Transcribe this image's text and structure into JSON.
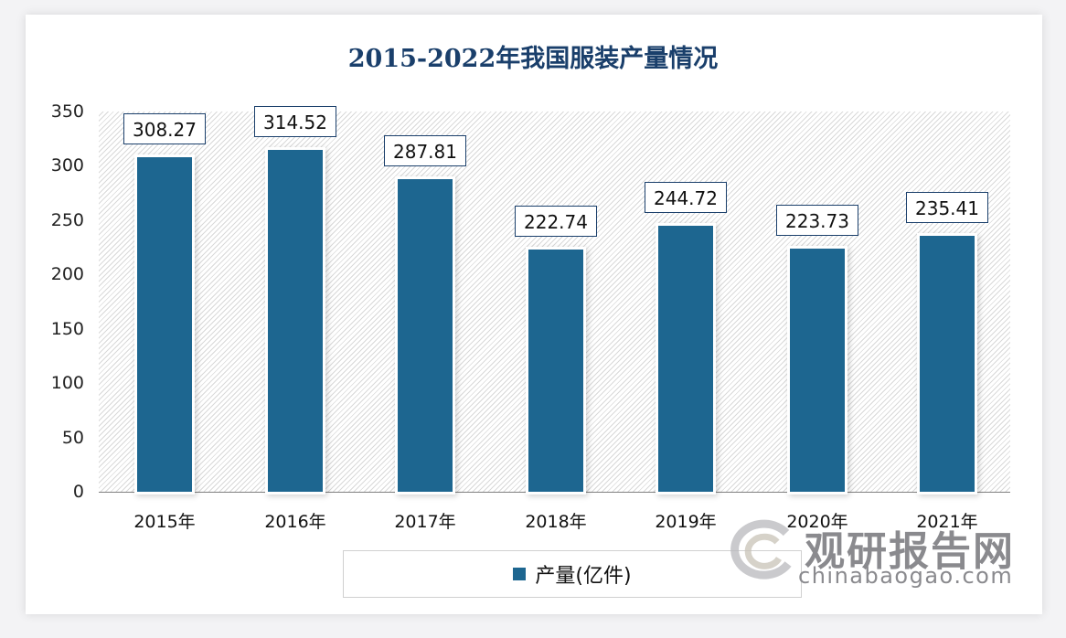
{
  "chart_data": {
    "type": "bar",
    "title": "2015-2022年我国服装产量情况",
    "categories": [
      "2015年",
      "2016年",
      "2017年",
      "2018年",
      "2019年",
      "2020年",
      "2021年"
    ],
    "series": [
      {
        "name": "产量(亿件)",
        "values": [
          308.27,
          314.52,
          287.81,
          222.74,
          244.72,
          223.73,
          235.41
        ],
        "color": "#1d6690"
      }
    ],
    "data_labels": [
      "308.27",
      "314.52",
      "287.81",
      "222.74",
      "244.72",
      "223.73",
      "235.41"
    ],
    "xlabel": "",
    "ylabel": "",
    "ylim": [
      0,
      350
    ],
    "yticks": [
      "0",
      "50",
      "100",
      "150",
      "200",
      "250",
      "300",
      "350"
    ],
    "grid": false,
    "legend_position": "bottom"
  },
  "watermark": {
    "cn": "观研报告网",
    "en": "chinabaogao.com"
  }
}
